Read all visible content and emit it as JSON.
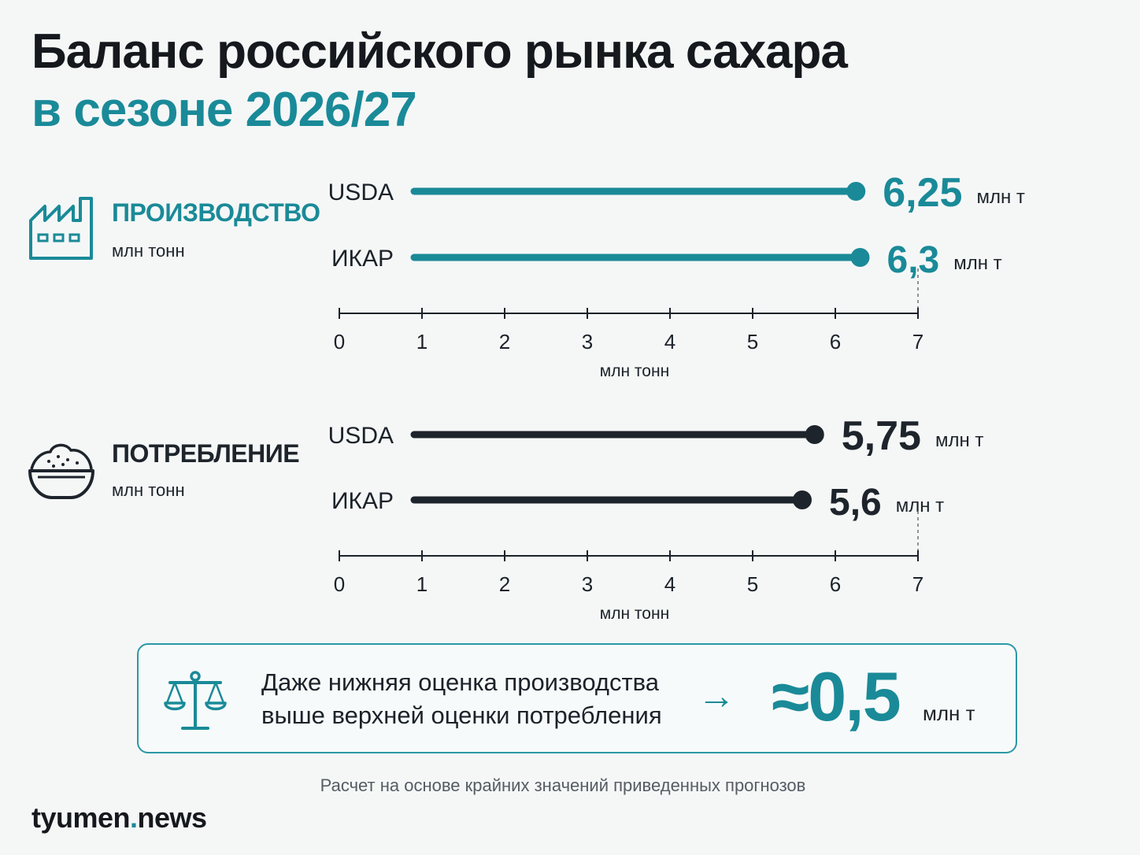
{
  "header": {
    "title_line1": "Баланс российского рынка сахара",
    "title_line2": "в сезоне 2026/27"
  },
  "colors": {
    "production": "#1a8a98",
    "consumption": "#1e242b",
    "axis": "#1b2229"
  },
  "sections": [
    {
      "title": "ПРОИЗВОДСТВО",
      "unit": "млн тонн",
      "icon": "factory-icon",
      "color": "#1a8a98"
    },
    {
      "title": "ПОТРЕБЛЕНИЕ",
      "unit": "млн тонн",
      "icon": "sugar-bowl-icon",
      "color": "#1e242b"
    }
  ],
  "chart_data": [
    {
      "type": "bar",
      "title": "ПРОИЗВОДСТВО",
      "orientation": "horizontal",
      "categories": [
        "USDA",
        "ИКАР"
      ],
      "values": [
        6.25,
        6.3
      ],
      "value_labels": [
        "6,25",
        "6,3"
      ],
      "value_unit": "млн т",
      "xlabel": "млн тонн",
      "xlim": [
        0,
        7
      ],
      "xticks": [
        "0",
        "1",
        "2",
        "3",
        "4",
        "5",
        "6",
        "7"
      ],
      "grid": false
    },
    {
      "type": "bar",
      "title": "ПОТРЕБЛЕНИЕ",
      "orientation": "horizontal",
      "categories": [
        "USDA",
        "ИКАР"
      ],
      "values": [
        5.75,
        5.6
      ],
      "value_labels": [
        "5,75",
        "5,6"
      ],
      "value_unit": "млн т",
      "xlabel": "млн тонн",
      "xlim": [
        0,
        7
      ],
      "xticks": [
        "0",
        "1",
        "2",
        "3",
        "4",
        "5",
        "6",
        "7"
      ],
      "grid": false
    }
  ],
  "callout": {
    "line1": "Даже нижняя оценка производства",
    "line2": "выше верхней оценки потребления",
    "arrow": "→",
    "value": "≈0,5",
    "unit": "млн т"
  },
  "footnote": "Расчет на основе крайних значений приведенных прогнозов",
  "logo": {
    "part1": "tyumen",
    "dot": ".",
    "part2": "news"
  }
}
